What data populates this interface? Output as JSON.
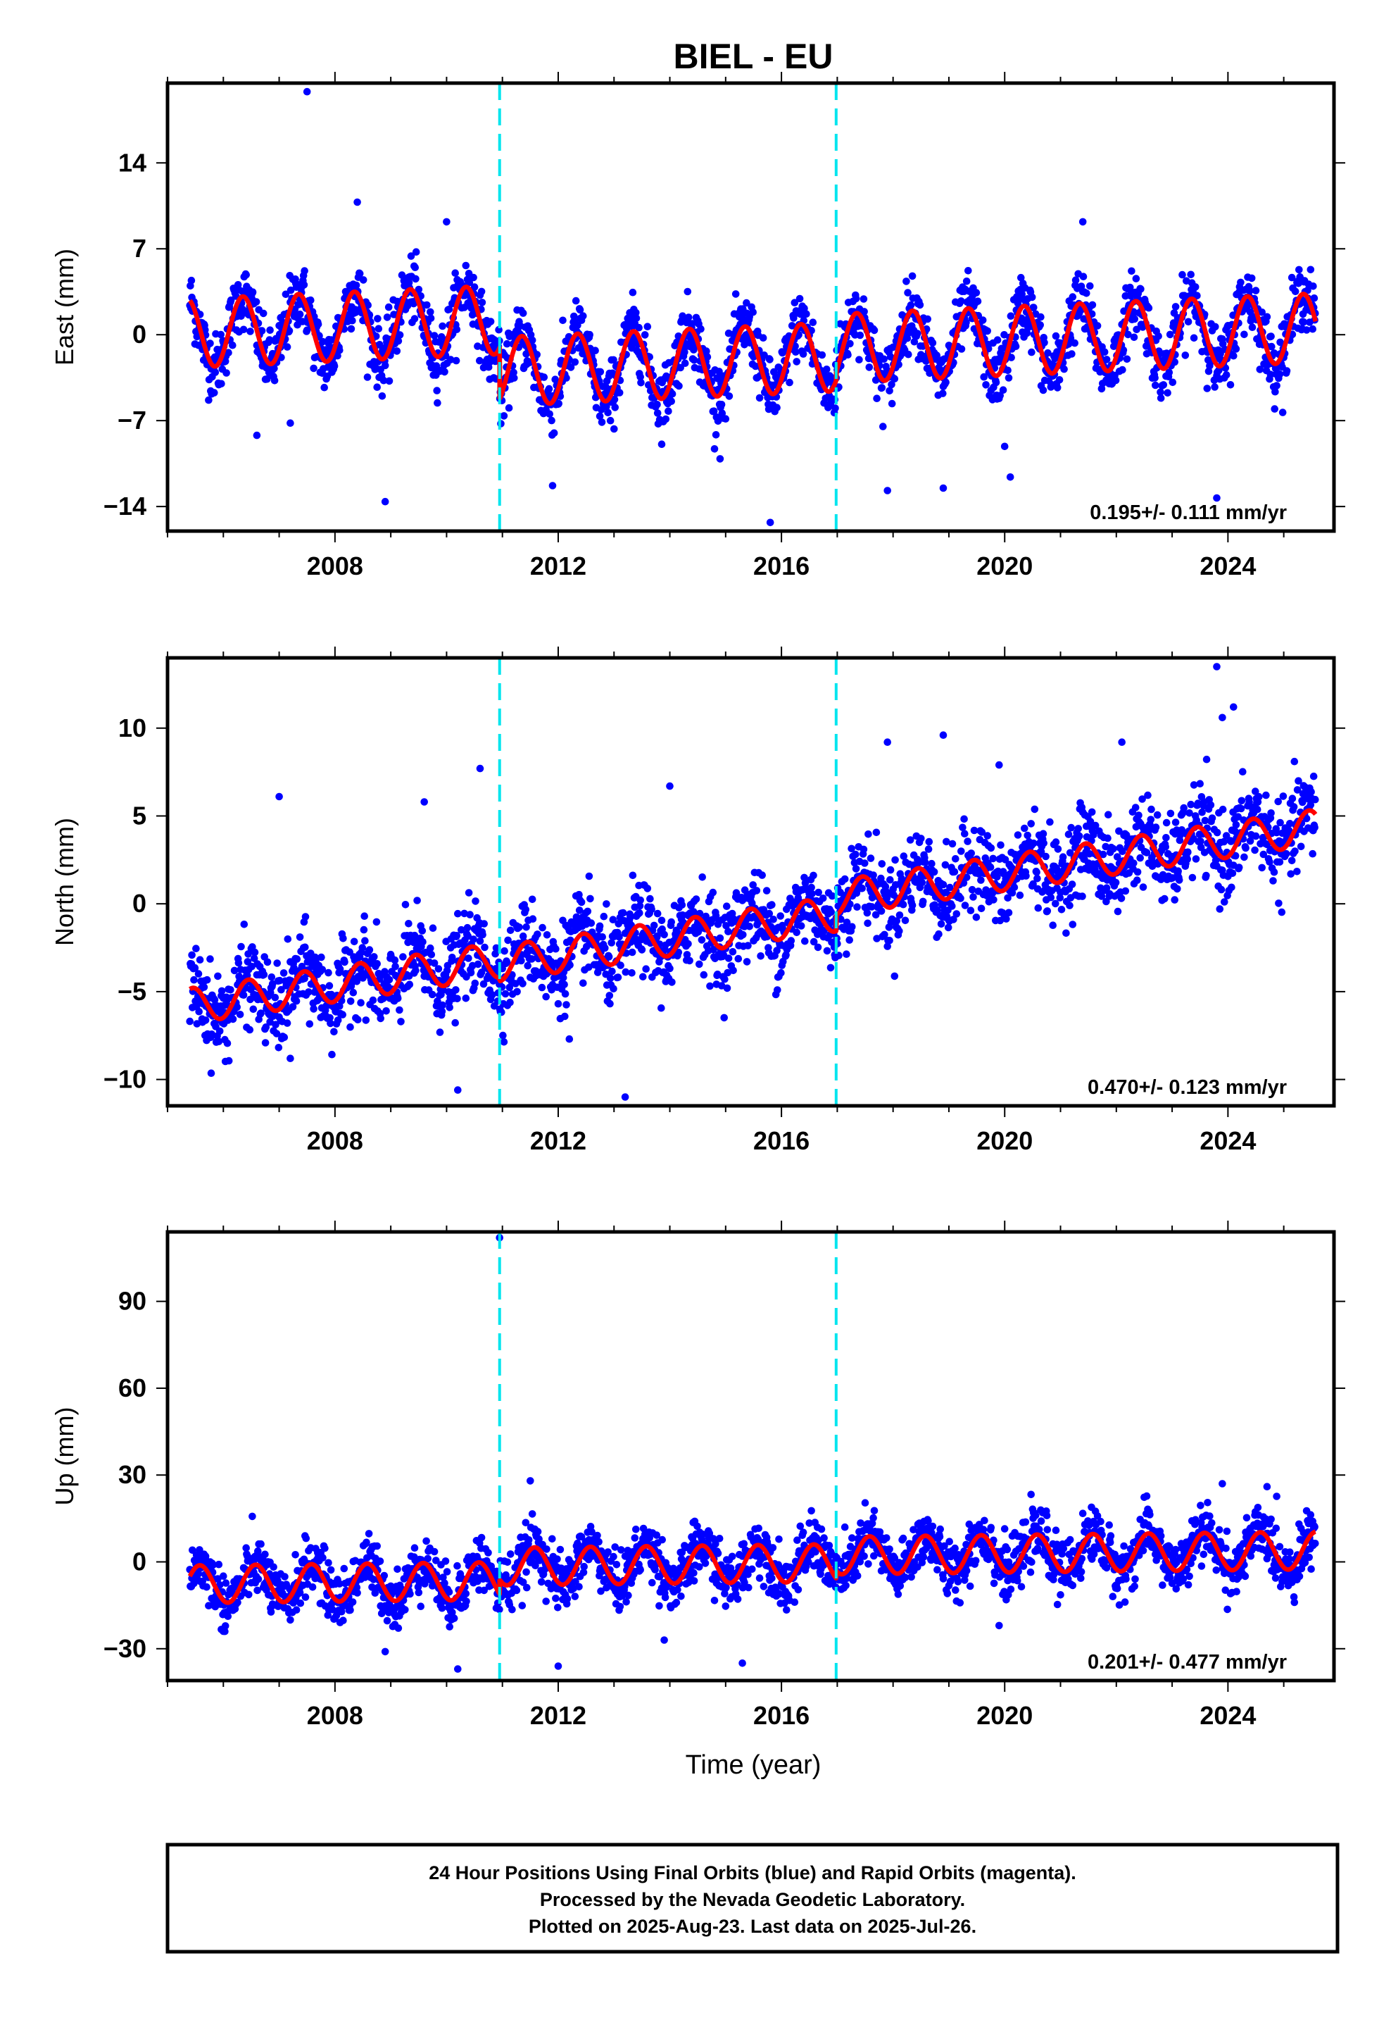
{
  "chart_data": {
    "type": "scatter",
    "title": "BIEL - EU",
    "xlabel": "Time (year)",
    "x_range": [
      2005.0,
      2025.9
    ],
    "x_ticks": [
      2008,
      2012,
      2016,
      2020,
      2024
    ],
    "x_tick_labels": [
      "2008",
      "2012",
      "2016",
      "2020",
      "2024"
    ],
    "discontinuities": [
      2010.95,
      2016.98
    ],
    "data_start": 2005.4,
    "data_end": 2025.57,
    "colors": {
      "observations": "#0000ff",
      "model_fit": "#ff0000",
      "offsets": "#00e5ee",
      "frame": "#000000"
    },
    "panels": [
      {
        "id": "east",
        "ylabel": "East (mm)",
        "ylim": [
          -16,
          20.5
        ],
        "y_ticks": [
          -14,
          -7,
          0,
          7,
          14
        ],
        "y_tick_labels": [
          "−14",
          "−7",
          "0",
          "7",
          "14"
        ],
        "rate_label": "0.195+/- 0.111 mm/yr",
        "model": {
          "segments": [
            {
              "start": 2005.4,
              "end": 2010.95,
              "offset": 2.0,
              "trend": 0.195,
              "annual_amp": 2.8,
              "phase_peak": 0.35
            },
            {
              "start": 2010.95,
              "end": 2016.98,
              "offset": -2.2,
              "trend": 0.195,
              "annual_amp": 2.8,
              "phase_peak": 0.35
            },
            {
              "start": 2016.98,
              "end": 2025.57,
              "offset": -1.5,
              "trend": 0.195,
              "annual_amp": 2.8,
              "phase_peak": 0.35
            }
          ],
          "scatter_sd": 1.3
        },
        "outliers": [
          {
            "x": 2007.5,
            "y": 19.8
          },
          {
            "x": 2008.9,
            "y": -13.6
          },
          {
            "x": 2006.6,
            "y": -8.2
          },
          {
            "x": 2011.9,
            "y": -12.3
          },
          {
            "x": 2015.8,
            "y": -15.3
          },
          {
            "x": 2014.8,
            "y": -9.3
          },
          {
            "x": 2017.9,
            "y": -12.7
          },
          {
            "x": 2018.9,
            "y": -12.5
          },
          {
            "x": 2020.0,
            "y": -9.1
          },
          {
            "x": 2020.1,
            "y": -11.6
          },
          {
            "x": 2023.8,
            "y": -13.3
          },
          {
            "x": 2021.4,
            "y": 9.2
          },
          {
            "x": 2008.4,
            "y": 10.8
          },
          {
            "x": 2010.0,
            "y": 9.2
          },
          {
            "x": 2007.2,
            "y": -7.2
          }
        ]
      },
      {
        "id": "north",
        "ylabel": "North (mm)",
        "ylim": [
          -11.5,
          14
        ],
        "y_ticks": [
          -10,
          -5,
          0,
          5,
          10
        ],
        "y_tick_labels": [
          "−10",
          "−5",
          "0",
          "5",
          "10"
        ],
        "rate_label": "0.470+/- 0.123 mm/yr",
        "model": {
          "segments": [
            {
              "start": 2005.4,
              "end": 2010.95,
              "offset": -1.3,
              "trend": 0.47,
              "annual_amp": 1.0,
              "phase_peak": 0.45
            },
            {
              "start": 2010.95,
              "end": 2016.98,
              "offset": -1.5,
              "trend": 0.47,
              "annual_amp": 1.0,
              "phase_peak": 0.45
            },
            {
              "start": 2016.98,
              "end": 2025.57,
              "offset": -0.6,
              "trend": 0.47,
              "annual_amp": 1.0,
              "phase_peak": 0.45
            }
          ],
          "scatter_sd": 1.2
        },
        "outliers": [
          {
            "x": 2023.8,
            "y": 13.5
          },
          {
            "x": 2013.2,
            "y": -11.0
          },
          {
            "x": 2010.2,
            "y": -10.6
          },
          {
            "x": 2007.2,
            "y": -8.8
          },
          {
            "x": 2014.0,
            "y": 6.7
          },
          {
            "x": 2007.0,
            "y": 6.1
          },
          {
            "x": 2010.6,
            "y": 7.7
          },
          {
            "x": 2018.9,
            "y": 9.6
          },
          {
            "x": 2017.9,
            "y": 9.2
          },
          {
            "x": 2022.1,
            "y": 9.2
          },
          {
            "x": 2012.2,
            "y": -7.7
          },
          {
            "x": 2019.9,
            "y": 7.9
          },
          {
            "x": 2009.6,
            "y": 5.8
          },
          {
            "x": 2024.1,
            "y": 11.2
          },
          {
            "x": 2023.9,
            "y": 10.6
          }
        ]
      },
      {
        "id": "up",
        "ylabel": "Up (mm)",
        "ylim": [
          -41,
          114
        ],
        "y_ticks": [
          -30,
          0,
          30,
          60,
          90
        ],
        "y_tick_labels": [
          "−30",
          "0",
          "30",
          "60",
          "90"
        ],
        "rate_label": "0.201+/- 0.477 mm/yr",
        "model": {
          "segments": [
            {
              "start": 2005.4,
              "end": 2010.95,
              "offset": -5.8,
              "trend": 0.201,
              "annual_amp": 6.5,
              "phase_peak": 0.58
            },
            {
              "start": 2010.95,
              "end": 2016.98,
              "offset": -0.8,
              "trend": 0.201,
              "annual_amp": 6.5,
              "phase_peak": 0.58
            },
            {
              "start": 2016.98,
              "end": 2025.57,
              "offset": 1.8,
              "trend": 0.201,
              "annual_amp": 6.5,
              "phase_peak": 0.58
            }
          ],
          "scatter_sd": 4.8
        },
        "outliers": [
          {
            "x": 2010.95,
            "y": 112
          },
          {
            "x": 2010.2,
            "y": -37
          },
          {
            "x": 2012.0,
            "y": -36
          },
          {
            "x": 2015.3,
            "y": -35
          },
          {
            "x": 2008.9,
            "y": -31
          },
          {
            "x": 2011.5,
            "y": 28
          },
          {
            "x": 2023.9,
            "y": 27
          },
          {
            "x": 2024.7,
            "y": 26
          },
          {
            "x": 2013.9,
            "y": -27
          },
          {
            "x": 2019.9,
            "y": -22
          },
          {
            "x": 2006.0,
            "y": -24
          }
        ]
      }
    ]
  },
  "footer": {
    "line1": "24 Hour Positions Using Final Orbits (blue) and Rapid Orbits (magenta).",
    "line2": "Processed by the Nevada Geodetic Laboratory.",
    "line3": "Plotted on 2025-Aug-23. Last data on 2025-Jul-26."
  }
}
